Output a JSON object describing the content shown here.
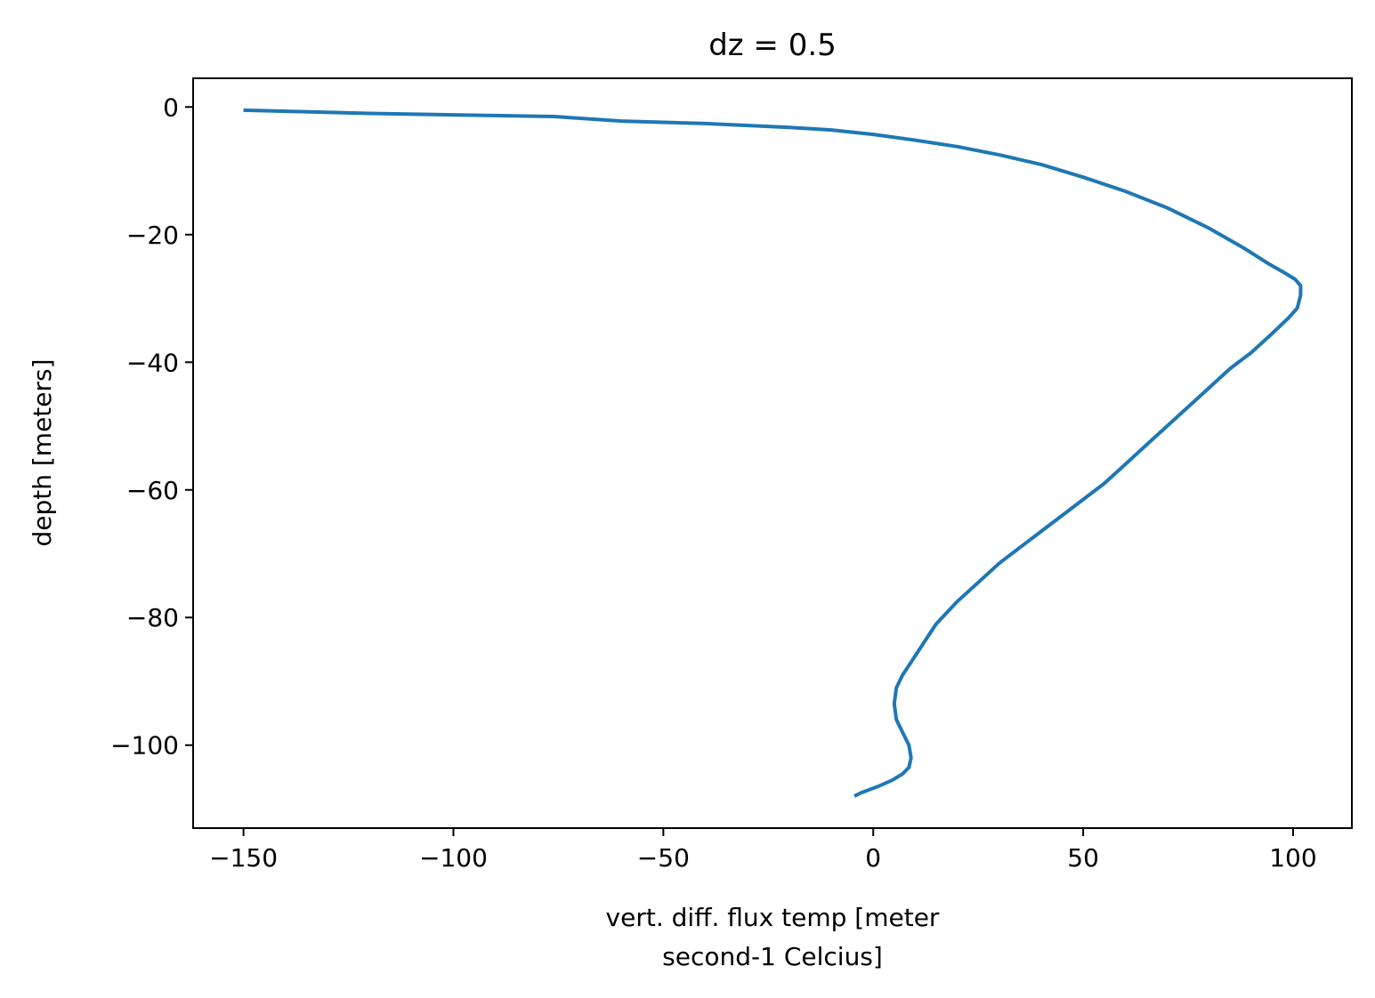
{
  "chart_data": {
    "type": "line",
    "title": "dz = 0.5",
    "xlabel_lines": [
      "vert. diff. flux temp [meter",
      "second-1 Celcius]"
    ],
    "ylabel": "depth [meters]",
    "xlim": [
      -162,
      114
    ],
    "ylim": [
      -113,
      4.5
    ],
    "xticks": [
      -150,
      -100,
      -50,
      0,
      50,
      100
    ],
    "xtick_labels": [
      "−150",
      "−100",
      "−50",
      "0",
      "50",
      "100"
    ],
    "yticks": [
      0,
      -20,
      -40,
      -60,
      -80,
      -100
    ],
    "ytick_labels": [
      "0",
      "−20",
      "−40",
      "−60",
      "−80",
      "−100"
    ],
    "grid": false,
    "series": [
      {
        "color": "#1f77b4",
        "x": [
          -150,
          -120,
          -76,
          -60,
          -40,
          -20,
          -10,
          0,
          10,
          20,
          30,
          40,
          50,
          60,
          70,
          80,
          88,
          94,
          98,
          100.5,
          101.8,
          101.8,
          101,
          99,
          95,
          90,
          85,
          80,
          75,
          70,
          65,
          60,
          55,
          50,
          45,
          40,
          35,
          30,
          25,
          20,
          15,
          12,
          9,
          7,
          5.5,
          5,
          5.5,
          7,
          8.5,
          9,
          8.5,
          7,
          4.5,
          1,
          -3,
          -4.5
        ],
        "y": [
          -0.5,
          -1.0,
          -1.5,
          -2.2,
          -2.6,
          -3.2,
          -3.6,
          -4.3,
          -5.2,
          -6.2,
          -7.5,
          -9.0,
          -11.0,
          -13.2,
          -15.8,
          -19.0,
          -22.0,
          -24.5,
          -26.0,
          -27.0,
          -28.0,
          -29.5,
          -31.5,
          -33.0,
          -35.5,
          -38.5,
          -41.0,
          -44.0,
          -47.0,
          -50.0,
          -53.0,
          -56.0,
          -59.0,
          -61.5,
          -64.0,
          -66.5,
          -69.0,
          -71.5,
          -74.5,
          -77.5,
          -81.0,
          -84.0,
          -87.0,
          -89.0,
          -91.0,
          -93.5,
          -96.0,
          -98.0,
          -100.0,
          -102.0,
          -103.5,
          -104.5,
          -105.5,
          -106.5,
          -107.5,
          -108.0
        ]
      }
    ]
  }
}
